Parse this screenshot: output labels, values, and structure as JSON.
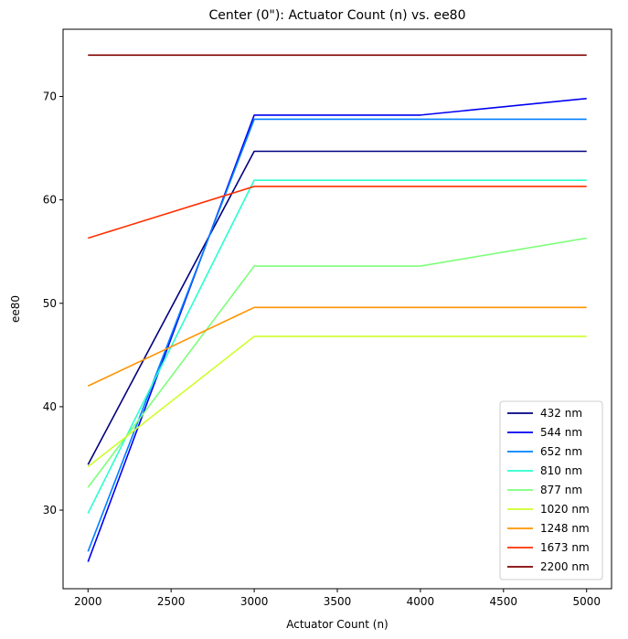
{
  "chart_data": {
    "type": "line",
    "title": "Center (0\"): Actuator Count (n) vs. ee80",
    "xlabel": "Actuator Count (n)",
    "ylabel": "ee80",
    "x": [
      2000,
      3000,
      4000,
      5000
    ],
    "xlim": [
      1850,
      5150
    ],
    "ylim": [
      22.4,
      76.5
    ],
    "xticks": [
      2000,
      2500,
      3000,
      3500,
      4000,
      4500,
      5000
    ],
    "yticks": [
      30,
      40,
      50,
      60,
      70
    ],
    "grid": false,
    "legend_position": "lower-right",
    "series": [
      {
        "name": "432 nm",
        "color": "#000080",
        "values": [
          34.4,
          64.7,
          64.7,
          64.7
        ]
      },
      {
        "name": "544 nm",
        "color": "#0000f1",
        "values": [
          25.0,
          68.2,
          68.2,
          69.8
        ]
      },
      {
        "name": "652 nm",
        "color": "#0080ff",
        "values": [
          26.0,
          67.8,
          67.8,
          67.8
        ]
      },
      {
        "name": "810 nm",
        "color": "#29ffce",
        "values": [
          29.7,
          61.9,
          61.9,
          61.9
        ]
      },
      {
        "name": "877 nm",
        "color": "#7dff7a",
        "values": [
          32.2,
          53.6,
          53.6,
          56.3
        ]
      },
      {
        "name": "1020 nm",
        "color": "#ceff29",
        "values": [
          34.2,
          46.8,
          46.8,
          46.8
        ]
      },
      {
        "name": "1248 nm",
        "color": "#ff9400",
        "values": [
          42.0,
          49.6,
          49.6,
          49.6
        ]
      },
      {
        "name": "1673 nm",
        "color": "#ff3000",
        "values": [
          56.3,
          61.3,
          61.3,
          61.3
        ]
      },
      {
        "name": "2200 nm",
        "color": "#800000",
        "values": [
          74.0,
          74.0,
          74.0,
          74.0
        ]
      }
    ]
  }
}
